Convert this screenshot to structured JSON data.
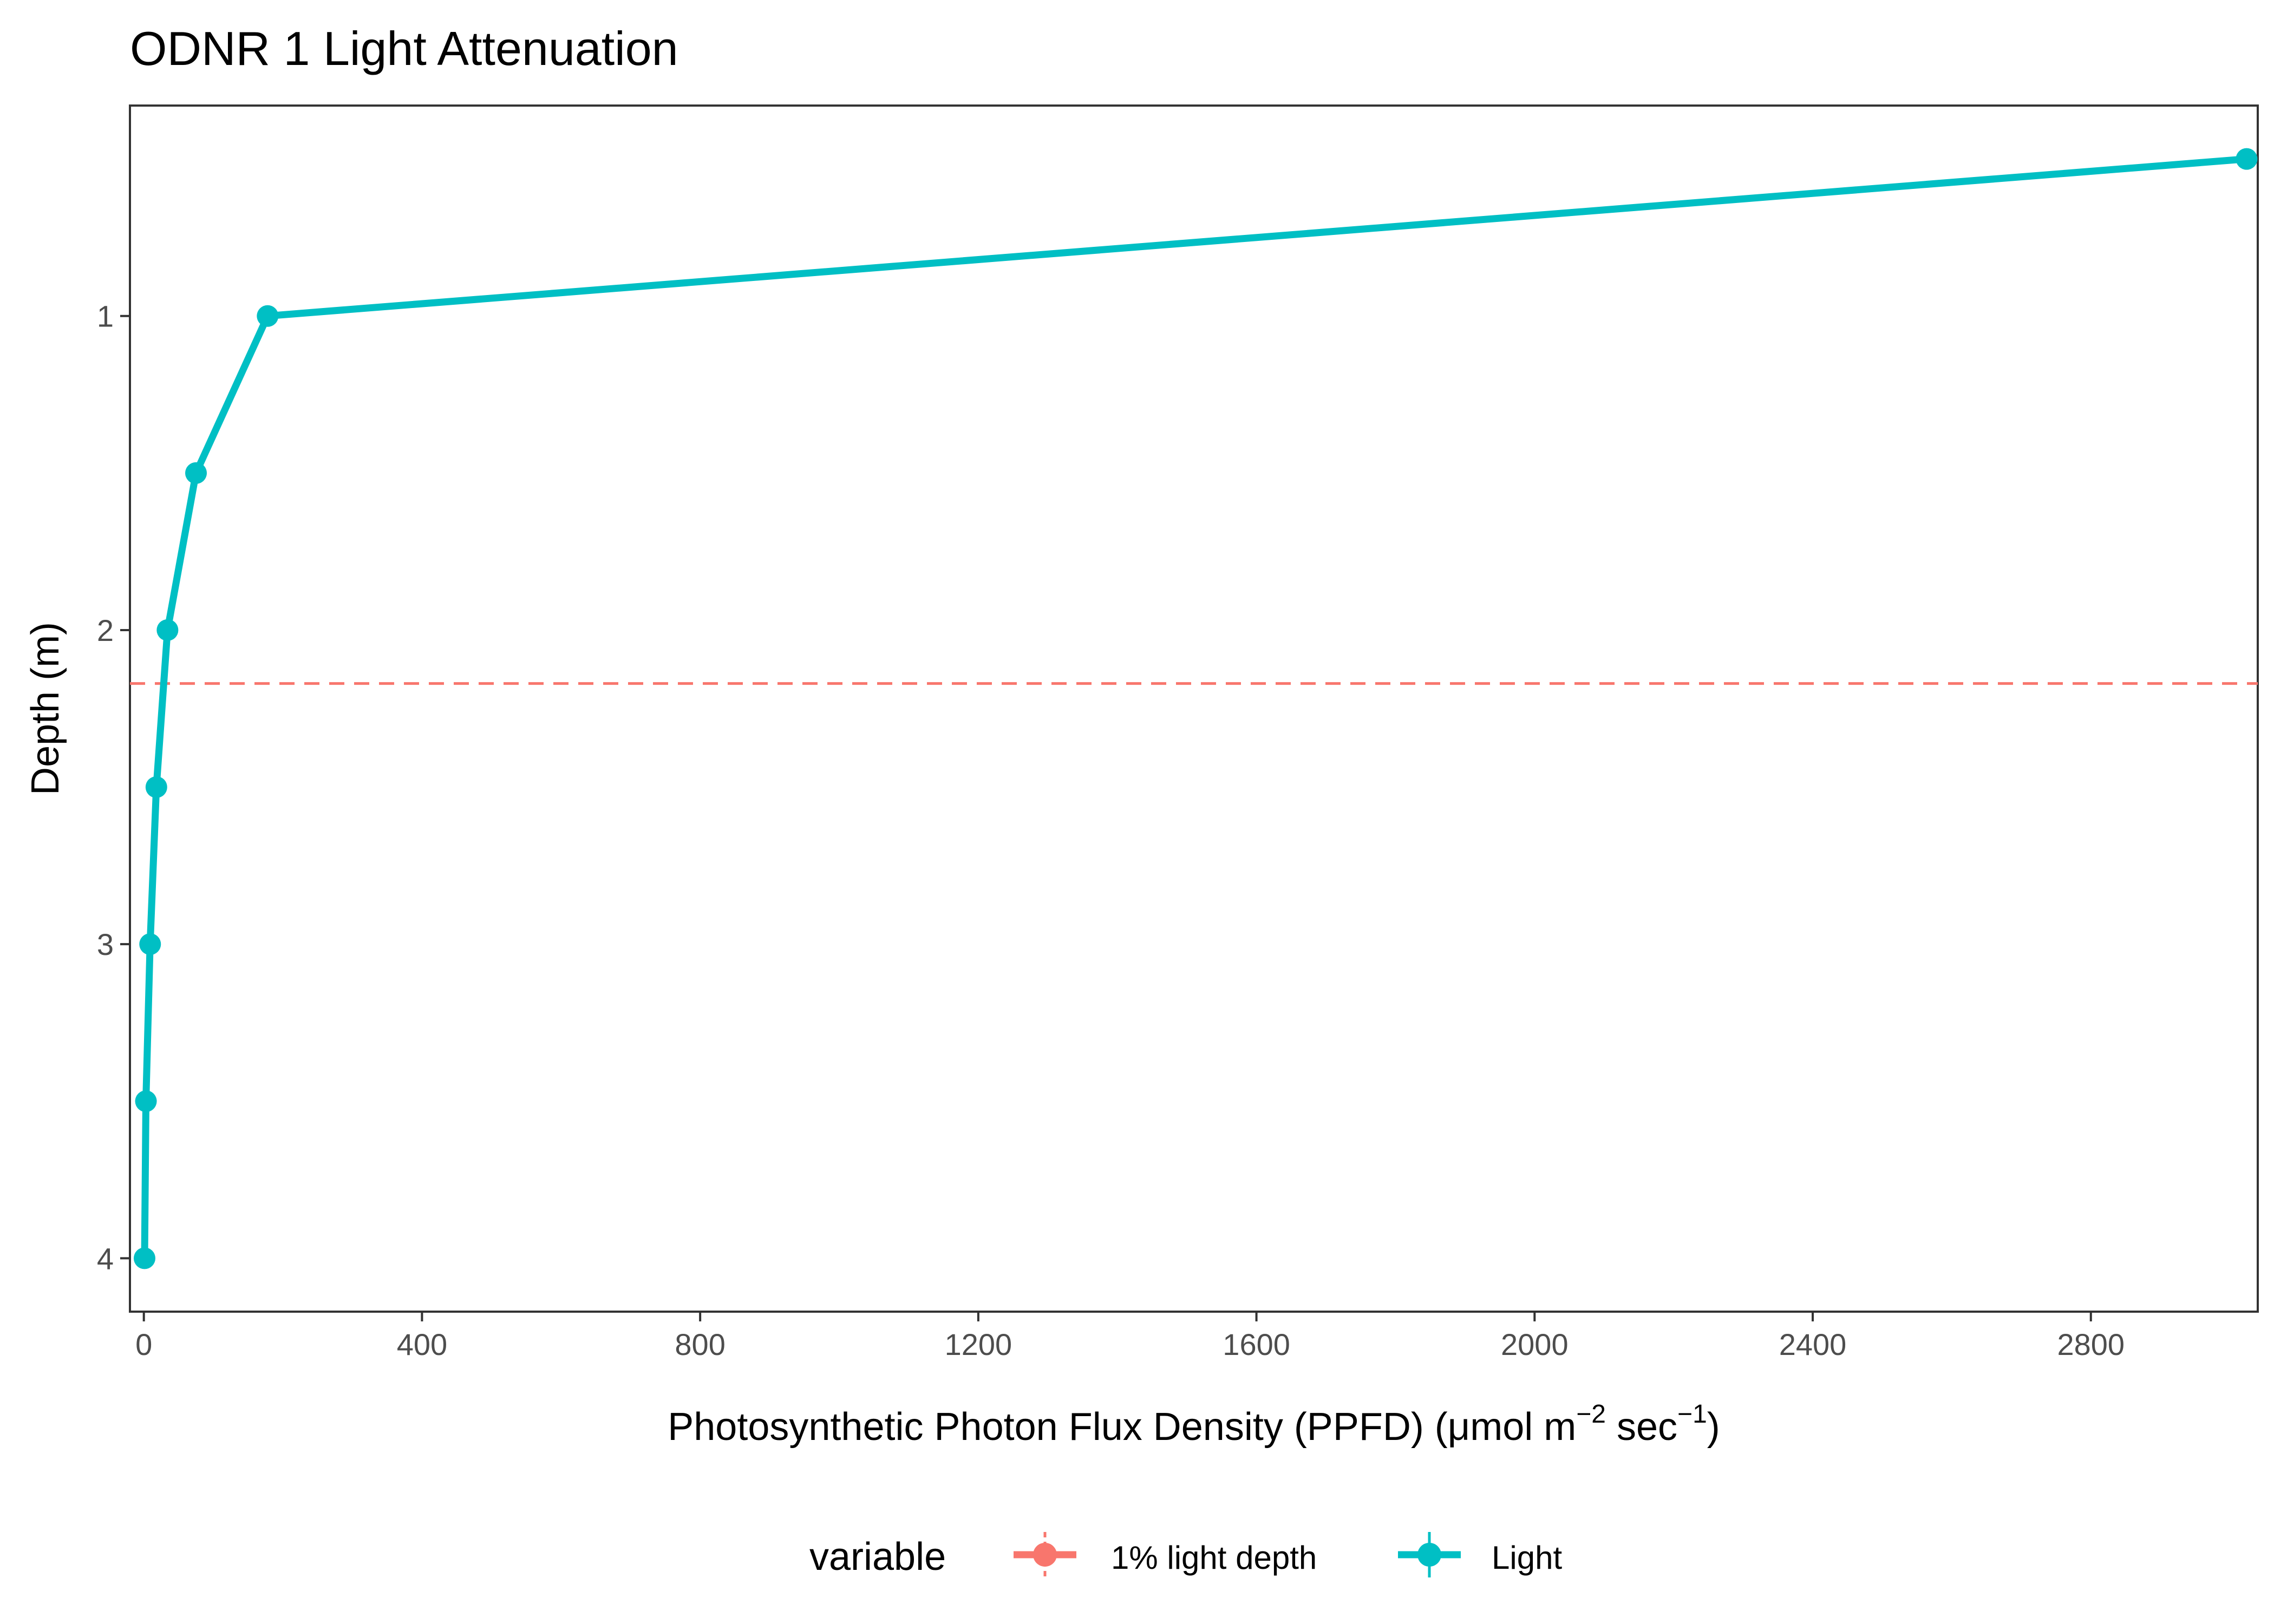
{
  "chart_data": {
    "type": "line",
    "title": "ODNR 1 Light Attenuation",
    "xlabel": {
      "main": "Photosynthetic Photon Flux Density (PPFD) (μmol m",
      "sup1": "−2",
      "mid": " sec",
      "sup2": "−1",
      "end": ")"
    },
    "ylabel": "Depth (m)",
    "xlim": [
      -20,
      3040
    ],
    "ylim": [
      0.33,
      4.17
    ],
    "y_reversed": true,
    "x_ticks": [
      0,
      400,
      800,
      1200,
      1600,
      2000,
      2400,
      2800
    ],
    "x_tick_labels": [
      "0",
      "400",
      "800",
      "1200",
      "1600",
      "2000",
      "2400",
      "2800"
    ],
    "y_ticks": [
      1,
      2,
      3,
      4
    ],
    "y_tick_labels": [
      "1",
      "2",
      "3",
      "4"
    ],
    "grid": false,
    "legend_position": "bottom",
    "legend": {
      "title": "variable",
      "entries": [
        {
          "name": "1% light depth",
          "color": "#F8766D"
        },
        {
          "name": "Light",
          "color": "#00BFC4"
        }
      ]
    },
    "series": [
      {
        "name": "Light",
        "color": "#00BFC4",
        "points": [
          {
            "x": 3024,
            "y": 0.5
          },
          {
            "x": 178,
            "y": 1.0
          },
          {
            "x": 75,
            "y": 1.5
          },
          {
            "x": 34,
            "y": 2.0
          },
          {
            "x": 18,
            "y": 2.5
          },
          {
            "x": 9,
            "y": 3.0
          },
          {
            "x": 3,
            "y": 3.5
          },
          {
            "x": 1,
            "y": 4.0
          }
        ]
      },
      {
        "name": "1% light depth",
        "color": "#F8766D",
        "style": "dashed",
        "hline_y": 2.17
      }
    ]
  }
}
